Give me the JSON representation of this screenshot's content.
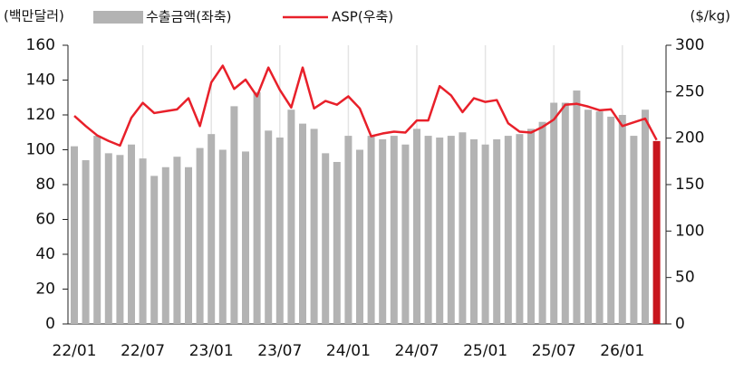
{
  "chart_data": {
    "type": "bar-line",
    "left_unit": "(백만달러)",
    "right_unit": "($/kg)",
    "categories": [
      "22/01",
      null,
      null,
      null,
      null,
      null,
      "22/07",
      null,
      null,
      null,
      null,
      null,
      "23/01",
      null,
      null,
      null,
      null,
      null,
      "23/07",
      null,
      null,
      null,
      null,
      null,
      "24/01",
      null,
      null,
      null,
      null,
      null,
      "24/07",
      null,
      null,
      null,
      null,
      null,
      "25/01",
      null,
      null,
      null,
      null,
      null,
      "25/07",
      null,
      null,
      null,
      null,
      null,
      "26/01",
      null,
      null,
      null
    ],
    "series": [
      {
        "name": "수출금액(좌축)",
        "type": "bar",
        "color": "#b3b3b3",
        "last_color": "#c8161d",
        "axis": "y",
        "values": [
          102,
          94,
          108,
          98,
          97,
          103,
          95,
          85,
          90,
          96,
          90,
          101,
          109,
          100,
          125,
          99,
          133,
          111,
          107,
          123,
          115,
          112,
          98,
          93,
          108,
          100,
          108,
          106,
          108,
          103,
          112,
          108,
          107,
          108,
          110,
          106,
          103,
          106,
          108,
          109,
          112,
          116,
          127,
          127,
          134,
          123,
          122,
          119,
          120,
          108,
          123,
          105
        ]
      },
      {
        "name": "ASP(우축)",
        "type": "line",
        "color": "#e8202a",
        "axis": "y2",
        "values": [
          224,
          213,
          203,
          197,
          192,
          222,
          238,
          227,
          229,
          231,
          243,
          213,
          260,
          278,
          253,
          263,
          245,
          276,
          252,
          233,
          276,
          232,
          240,
          236,
          245,
          232,
          202,
          205,
          207,
          206,
          219,
          219,
          256,
          246,
          228,
          243,
          239,
          241,
          216,
          207,
          206,
          212,
          220,
          236,
          237,
          234,
          230,
          231,
          213,
          217,
          221,
          198
        ]
      }
    ],
    "ylim": [
      0,
      160
    ],
    "yticks": [
      0,
      20,
      40,
      60,
      80,
      100,
      120,
      140,
      160
    ],
    "y2lim": [
      0,
      300
    ],
    "y2ticks": [
      0,
      50,
      100,
      150,
      200,
      250,
      300
    ],
    "grid": "x"
  }
}
